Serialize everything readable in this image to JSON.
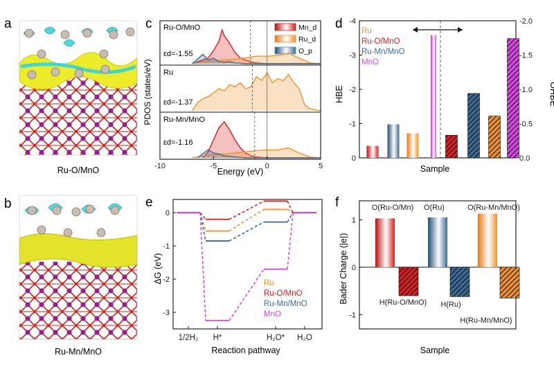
{
  "colors": {
    "ru": "#f0922a",
    "ru_o_mno": "#d61f1f",
    "ru_mn_mno": "#3a6a94",
    "mno": "#d648e0",
    "o_p": "#4a9ad6",
    "axis": "#1a1a1a"
  },
  "panel_a": {
    "letter": "a",
    "caption": "Ru-O/MnO"
  },
  "panel_b": {
    "letter": "b",
    "caption": "Ru-Mn/MnO"
  },
  "chart_data": [
    {
      "id": "panel_c",
      "letter": "c",
      "type": "area",
      "xlabel": "Energy (eV)",
      "ylabel": "PDOS (states/eV)",
      "xlim": [
        -10,
        5
      ],
      "xticks": [
        "-10",
        "-5",
        "0",
        "5"
      ],
      "legend": [
        "Mn_d",
        "Ru_d",
        "O_p"
      ],
      "legend_position": "top-right",
      "subpanels": [
        {
          "name": "Ru-O/MnO",
          "ed_label": "εd=-1.55",
          "ed": -1.55,
          "series": [
            {
              "name": "Mn_d",
              "x": [
                -7,
                -6.5,
                -6,
                -5.5,
                -5,
                -4.5,
                -4.2,
                -4,
                -3.5,
                -3,
                -2.5,
                -2,
                -1.5,
                -1,
                0,
                2,
                5
              ],
              "y": [
                0,
                0.05,
                0.1,
                0.15,
                0.35,
                0.6,
                0.9,
                0.75,
                0.55,
                0.3,
                0.15,
                0.1,
                0.05,
                0.02,
                0,
                0,
                0
              ]
            },
            {
              "name": "Ru_d",
              "x": [
                -7,
                -6,
                -5,
                -4,
                -3,
                -2,
                -1,
                0,
                1,
                2,
                3,
                4,
                5
              ],
              "y": [
                0,
                0.06,
                0.08,
                0.1,
                0.12,
                0.16,
                0.2,
                0.2,
                0.22,
                0.28,
                0.15,
                0.02,
                0
              ]
            },
            {
              "name": "O_p",
              "x": [
                -7,
                -6.5,
                -6,
                -5.5,
                -5,
                -4.5,
                -4,
                -3.5,
                -3,
                -2,
                0,
                5
              ],
              "y": [
                0,
                0.12,
                0.25,
                0.1,
                0.15,
                0.06,
                0.04,
                0.06,
                0.02,
                0,
                0,
                0
              ]
            }
          ]
        },
        {
          "name": "Ru",
          "ed_label": "εd=-1.37",
          "ed": -1.37,
          "series": [
            {
              "name": "Ru_d",
              "x": [
                -7,
                -6.5,
                -6,
                -5.5,
                -5,
                -4.5,
                -4,
                -3.5,
                -3,
                -2.5,
                -2,
                -1.5,
                -1,
                -0.5,
                0,
                0.5,
                1,
                1.5,
                2,
                2.5,
                3,
                3.5,
                4,
                5
              ],
              "y": [
                0,
                0.2,
                0.3,
                0.35,
                0.45,
                0.55,
                0.5,
                0.65,
                0.6,
                0.7,
                0.55,
                0.6,
                0.85,
                0.75,
                0.95,
                0.7,
                0.8,
                0.75,
                0.9,
                0.7,
                0.55,
                0.15,
                0.05,
                0
              ]
            }
          ]
        },
        {
          "name": "Ru-Mn/MnO",
          "ed_label": "εd=-1.16",
          "ed": -1.16,
          "series": [
            {
              "name": "Mn_d",
              "x": [
                -6,
                -5.5,
                -5,
                -4.5,
                -4,
                -3.5,
                -3,
                -2.5,
                -2,
                -1.5,
                -1,
                0,
                5
              ],
              "y": [
                0,
                0.15,
                0.45,
                0.75,
                0.9,
                0.7,
                0.45,
                0.25,
                0.12,
                0.05,
                0.02,
                0,
                0
              ]
            },
            {
              "name": "Ru_d",
              "x": [
                -7,
                -6,
                -5,
                -4,
                -3,
                -2,
                -1,
                0,
                1,
                2,
                3,
                4,
                5
              ],
              "y": [
                0,
                0.05,
                0.08,
                0.1,
                0.12,
                0.15,
                0.18,
                0.2,
                0.2,
                0.25,
                0.12,
                0.02,
                0
              ]
            },
            {
              "name": "O_p",
              "x": [
                -6.5,
                -6,
                -5.5,
                -5,
                -4.5,
                -4,
                -3.5,
                -3,
                -2,
                0,
                5
              ],
              "y": [
                0,
                0.1,
                0.2,
                0.12,
                0.1,
                0.05,
                0.04,
                0.02,
                0,
                0,
                0
              ]
            }
          ]
        }
      ]
    },
    {
      "id": "panel_d",
      "letter": "d",
      "type": "bar",
      "xlabel": "Sample",
      "ylabel": "HBE",
      "ylabel_right": "OHBE",
      "ylim": [
        -4,
        0
      ],
      "yticks": [
        "-4",
        "-3",
        "-2",
        "-1",
        "0"
      ],
      "ylim_right": [
        -2.0,
        0.0
      ],
      "yticks_right": [
        "-2.0",
        "-1.5",
        "-1.0",
        "-0.5",
        "0.0"
      ],
      "legend": [
        "Ru",
        "Ru-O/MnO",
        "Ru-Mn/MnO",
        "MnO"
      ],
      "legend_position": "top-left",
      "series": [
        {
          "name": "HBE",
          "axis": "left",
          "labels": [
            "Ru-O/MnO",
            "Ru-Mn/MnO",
            "Ru",
            "MnO"
          ],
          "values": [
            -0.35,
            -0.98,
            -0.72,
            -3.58
          ]
        },
        {
          "name": "OHBE",
          "axis": "right",
          "labels": [
            "Ru-O/MnO",
            "Ru-Mn/MnO",
            "Ru",
            "MnO"
          ],
          "values": [
            -0.33,
            -0.94,
            -0.61,
            -1.74
          ]
        }
      ]
    },
    {
      "id": "panel_e",
      "letter": "e",
      "type": "line",
      "xlabel": "Reaction pathway",
      "ylabel": "ΔG (eV)",
      "ylim": [
        -3.5,
        0.4
      ],
      "yticks": [
        "0",
        "-1",
        "-2",
        "-3"
      ],
      "categories": [
        "1/2H₂",
        "H*",
        "H₂O*",
        "H₂O"
      ],
      "legend": [
        "Ru",
        "Ru-O/MnO",
        "Ru-Mn/MnO",
        "MnO"
      ],
      "legend_position": "bottom-right",
      "series": [
        {
          "name": "Ru",
          "values": [
            0,
            -0.55,
            0.1,
            0
          ]
        },
        {
          "name": "Ru-O/MnO",
          "values": [
            0,
            -0.2,
            0.35,
            0
          ]
        },
        {
          "name": "Ru-Mn/MnO",
          "values": [
            0,
            -0.85,
            -0.28,
            0
          ]
        },
        {
          "name": "MnO",
          "values": [
            0,
            -3.25,
            -1.7,
            0
          ]
        }
      ]
    },
    {
      "id": "panel_f",
      "letter": "f",
      "type": "bar",
      "xlabel": "Sample",
      "ylabel": "Bader Charge (|e|)",
      "ylim": [
        -1.3,
        1.4
      ],
      "yticks": [
        "1",
        "0",
        "-1"
      ],
      "bars": [
        {
          "label": "O(Ru-O/Mn)",
          "value": 1.03,
          "series": "Ru-O/MnO",
          "hatched": false
        },
        {
          "label": "H(Ru-O/MnO)",
          "value": -0.6,
          "series": "Ru-O/MnO",
          "hatched": true
        },
        {
          "label": "O(Ru)",
          "value": 1.05,
          "series": "Ru-Mn/MnO",
          "hatched": false
        },
        {
          "label": "H(Ru)",
          "value": -0.62,
          "series": "Ru-Mn/MnO",
          "hatched": true
        },
        {
          "label": "O(Ru-Mn/MnO)",
          "value": 1.13,
          "series": "Ru",
          "hatched": false
        },
        {
          "label": "H(Ru-Mn/MnO)",
          "value": -0.65,
          "series": "Ru",
          "hatched": true
        }
      ]
    }
  ]
}
